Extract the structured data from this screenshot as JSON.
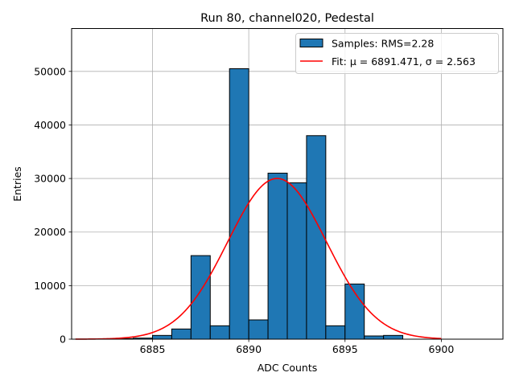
{
  "chart_data": {
    "type": "bar",
    "title": "Run 80, channel020, Pedestal",
    "xlabel": "ADC Counts",
    "ylabel": "Entries",
    "xlim": [
      6880.8,
      6903.2
    ],
    "ylim": [
      0,
      58000
    ],
    "grid": true,
    "legend_position": "top-right",
    "x_ticks": [
      6885,
      6890,
      6895,
      6900
    ],
    "y_ticks": [
      0,
      10000,
      20000,
      30000,
      40000,
      50000
    ],
    "histogram": {
      "name": "Samples: RMS=2.28",
      "color": "#1f77b4",
      "edge_color": "#000000",
      "bin_edges": [
        6883,
        6884,
        6885,
        6886,
        6887,
        6888,
        6889,
        6890,
        6891,
        6892,
        6893,
        6894,
        6895,
        6896,
        6897,
        6898,
        6899
      ],
      "values": [
        100,
        200,
        700,
        1900,
        15600,
        2500,
        50500,
        3600,
        31000,
        29200,
        38000,
        2500,
        10300,
        600,
        700,
        0
      ]
    },
    "fit": {
      "name": "Fit: μ = 6891.471, σ = 2.563",
      "color": "#ff0000",
      "mu": 6891.471,
      "sigma": 2.563,
      "amplitude": 30000,
      "x_range": [
        6881,
        6900
      ]
    }
  }
}
